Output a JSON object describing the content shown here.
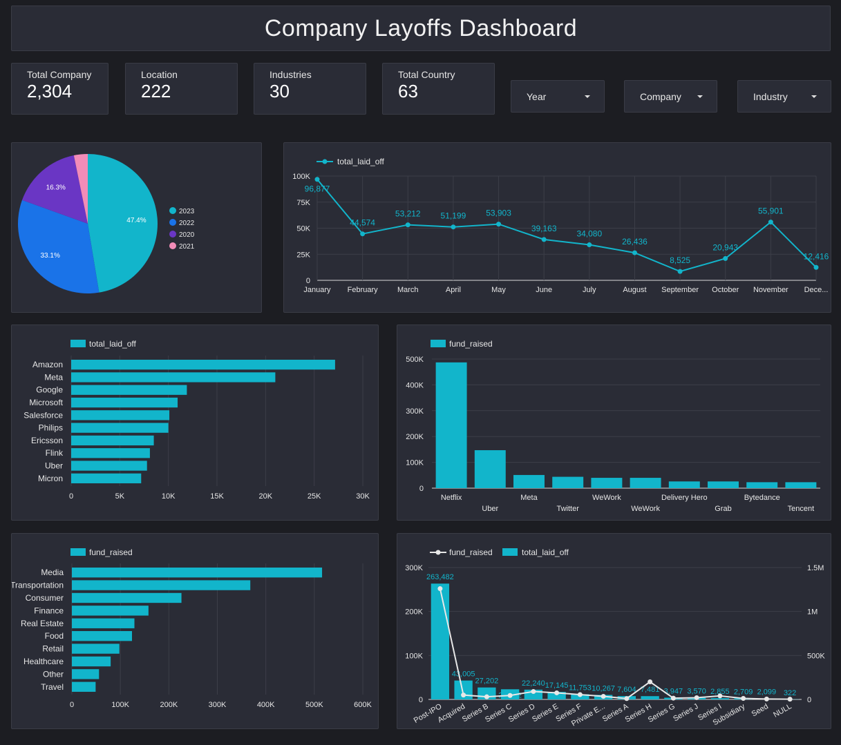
{
  "header": {
    "title": "Company Layoffs Dashboard"
  },
  "kpis": [
    {
      "label": "Total Company",
      "value": "2,304"
    },
    {
      "label": "Location",
      "value": "222"
    },
    {
      "label": "Industries",
      "value": "30"
    },
    {
      "label": "Total Country",
      "value": "63"
    }
  ],
  "filters": [
    {
      "label": "Year"
    },
    {
      "label": "Company"
    },
    {
      "label": "Industry"
    }
  ],
  "colors": {
    "accent": "#12b5cb",
    "blue": "#1a73e8",
    "purple": "#6a36c4",
    "pink": "#f28cb8",
    "panel": "#2a2c36",
    "background": "#1c1d22",
    "line_secondary": "#e8e8e8"
  },
  "chart_data": [
    {
      "id": "year-pie",
      "type": "pie",
      "legend_position": "right",
      "slices": [
        {
          "label": "2023",
          "value": 47.4,
          "display": "47.4%",
          "color": "#12b5cb"
        },
        {
          "label": "2022",
          "value": 33.1,
          "display": "33.1%",
          "color": "#1a73e8"
        },
        {
          "label": "2020",
          "value": 16.3,
          "display": "16.3%",
          "color": "#6a36c4"
        },
        {
          "label": "2021",
          "value": 3.2,
          "display": "",
          "color": "#f28cb8"
        }
      ]
    },
    {
      "id": "monthly-line",
      "type": "line",
      "legend_position": "top-left",
      "series_name": "total_laid_off",
      "categories": [
        "January",
        "February",
        "March",
        "April",
        "May",
        "June",
        "July",
        "August",
        "September",
        "October",
        "November",
        "Dece..."
      ],
      "values": [
        96877,
        44574,
        53212,
        51199,
        53903,
        39163,
        34080,
        26436,
        8525,
        20943,
        55901,
        12416
      ],
      "value_labels": [
        "96,877",
        "44,574",
        "53,212",
        "51,199",
        "53,903",
        "39,163",
        "34,080",
        "26,436",
        "8,525",
        "20,943",
        "55,901",
        "12,416"
      ],
      "ylim": [
        0,
        100000
      ],
      "yticks": [
        0,
        25000,
        50000,
        75000,
        100000
      ],
      "ytick_labels": [
        "0",
        "25K",
        "50K",
        "75K",
        "100K"
      ],
      "grid": true
    },
    {
      "id": "company-bar",
      "type": "bar",
      "orientation": "horizontal",
      "legend_position": "top-left",
      "series_name": "total_laid_off",
      "categories": [
        "Amazon",
        "Meta",
        "Google",
        "Microsoft",
        "Salesforce",
        "Philips",
        "Ericsson",
        "Flink",
        "Uber",
        "Micron"
      ],
      "values": [
        27150,
        21000,
        11900,
        10950,
        10100,
        10000,
        8500,
        8100,
        7800,
        7200
      ],
      "xlim": [
        0,
        30000
      ],
      "xticks": [
        0,
        5000,
        10000,
        15000,
        20000,
        25000,
        30000
      ],
      "xtick_labels": [
        "0",
        "5K",
        "10K",
        "15K",
        "20K",
        "25K",
        "30K"
      ],
      "grid": true
    },
    {
      "id": "fund-company-bar",
      "type": "bar",
      "orientation": "vertical",
      "legend_position": "top-left",
      "series_name": "fund_raised",
      "categories": [
        "Netflix",
        "Uber",
        "Meta",
        "Twitter",
        "WeWork",
        "WeWork",
        "Delivery Hero",
        "Grab",
        "Bytedance",
        "Tencent"
      ],
      "values": [
        487000,
        147000,
        51000,
        44000,
        40000,
        40000,
        26000,
        26000,
        23000,
        23000
      ],
      "ylim": [
        0,
        500000
      ],
      "yticks": [
        0,
        100000,
        200000,
        300000,
        400000,
        500000
      ],
      "ytick_labels": [
        "0",
        "100K",
        "200K",
        "300K",
        "400K",
        "500K"
      ],
      "grid": true
    },
    {
      "id": "industry-bar",
      "type": "bar",
      "orientation": "horizontal",
      "legend_position": "top-left",
      "series_name": "fund_raised",
      "categories": [
        "Media",
        "Transportation",
        "Consumer",
        "Finance",
        "Real Estate",
        "Food",
        "Retail",
        "Healthcare",
        "Other",
        "Travel"
      ],
      "values": [
        516000,
        368000,
        226000,
        158000,
        129000,
        124000,
        98000,
        80000,
        56000,
        49000
      ],
      "xlim": [
        0,
        600000
      ],
      "xticks": [
        0,
        100000,
        200000,
        300000,
        400000,
        500000,
        600000
      ],
      "xtick_labels": [
        "0",
        "100K",
        "200K",
        "300K",
        "400K",
        "500K",
        "600K"
      ],
      "grid": true
    },
    {
      "id": "stage-combo",
      "type": "bar",
      "legend_position": "top-left",
      "categories": [
        "Post-IPO",
        "Acquired",
        "Series B",
        "Series C",
        "Series D",
        "Series E",
        "Series F",
        "Private E...",
        "Series A",
        "Series H",
        "Series G",
        "Series J",
        "Series I",
        "Subsidiary",
        "Seed",
        "NULL"
      ],
      "series": [
        {
          "name": "fund_raised",
          "kind": "line",
          "axis": "right",
          "values": [
            1260000,
            50000,
            30000,
            45000,
            90000,
            75000,
            55000,
            35000,
            10000,
            200000,
            15000,
            20000,
            40000,
            12000,
            5000,
            3000
          ]
        },
        {
          "name": "total_laid_off",
          "kind": "bar",
          "axis": "left",
          "values": [
            263482,
            43005,
            27202,
            23092,
            22240,
            17145,
            11753,
            10267,
            7604,
            7481,
            3947,
            3570,
            2855,
            2709,
            2099,
            322
          ],
          "value_labels": [
            "263,482",
            "43,005",
            "27,202",
            "23,092",
            "22,240",
            "17,145",
            "11,753",
            "10,267",
            "7,604",
            "7,481",
            "3,947",
            "3,570",
            "2,855",
            "2,709",
            "2,099",
            "322"
          ]
        }
      ],
      "ylim_left": [
        0,
        300000
      ],
      "yticks_left": [
        0,
        100000,
        200000,
        300000
      ],
      "ytick_labels_left": [
        "0",
        "100K",
        "200K",
        "300K"
      ],
      "ylim_right": [
        0,
        1500000
      ],
      "yticks_right": [
        0,
        500000,
        1000000,
        1500000
      ],
      "ytick_labels_right": [
        "0",
        "500K",
        "1M",
        "1.5M"
      ],
      "grid": true
    }
  ]
}
